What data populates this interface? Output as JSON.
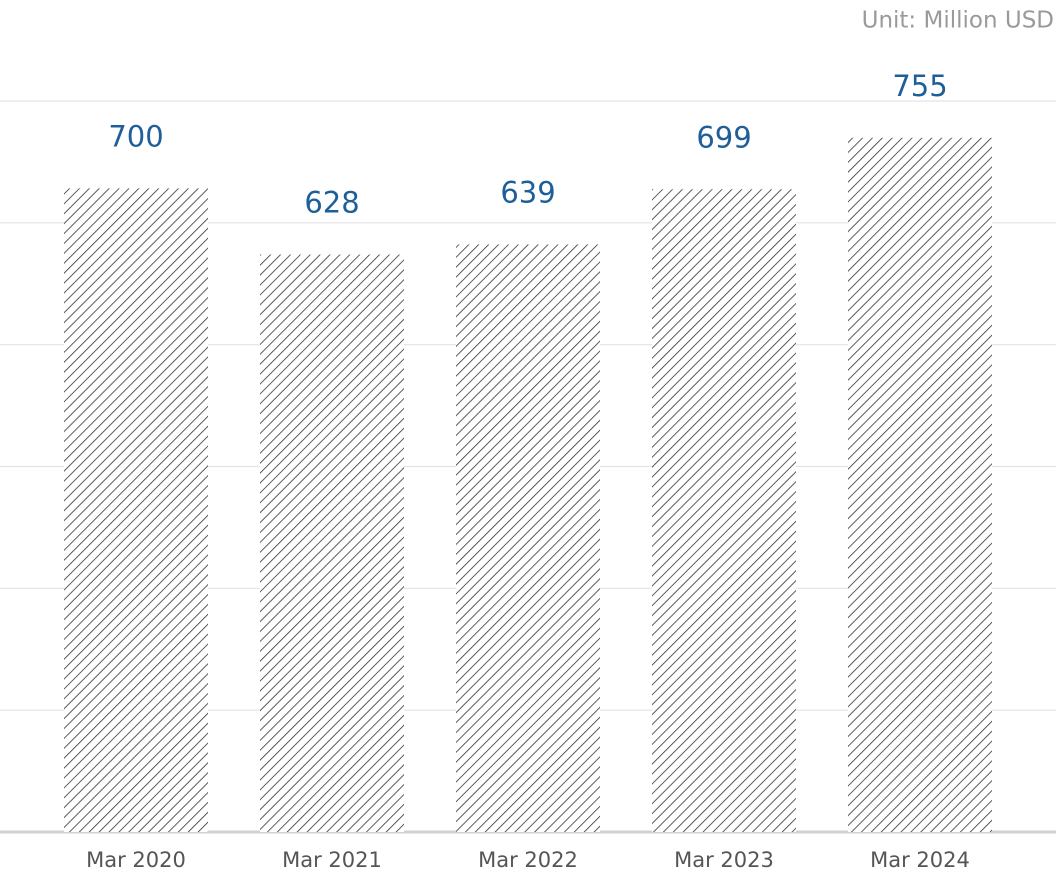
{
  "chart_data": {
    "type": "bar",
    "unit_label": "Unit: Million USD",
    "categories": [
      "Mar 2020",
      "Mar 2021",
      "Mar 2022",
      "Mar 2023",
      "Mar 2024"
    ],
    "values": [
      700,
      628,
      639,
      699,
      755
    ],
    "color": "#333333",
    "value_label_color": "#1f5f99",
    "ylim": [
      0,
      795
    ],
    "yticks": [
      0,
      132.5,
      265,
      397.5,
      530,
      662.5,
      795
    ],
    "grid": true
  }
}
